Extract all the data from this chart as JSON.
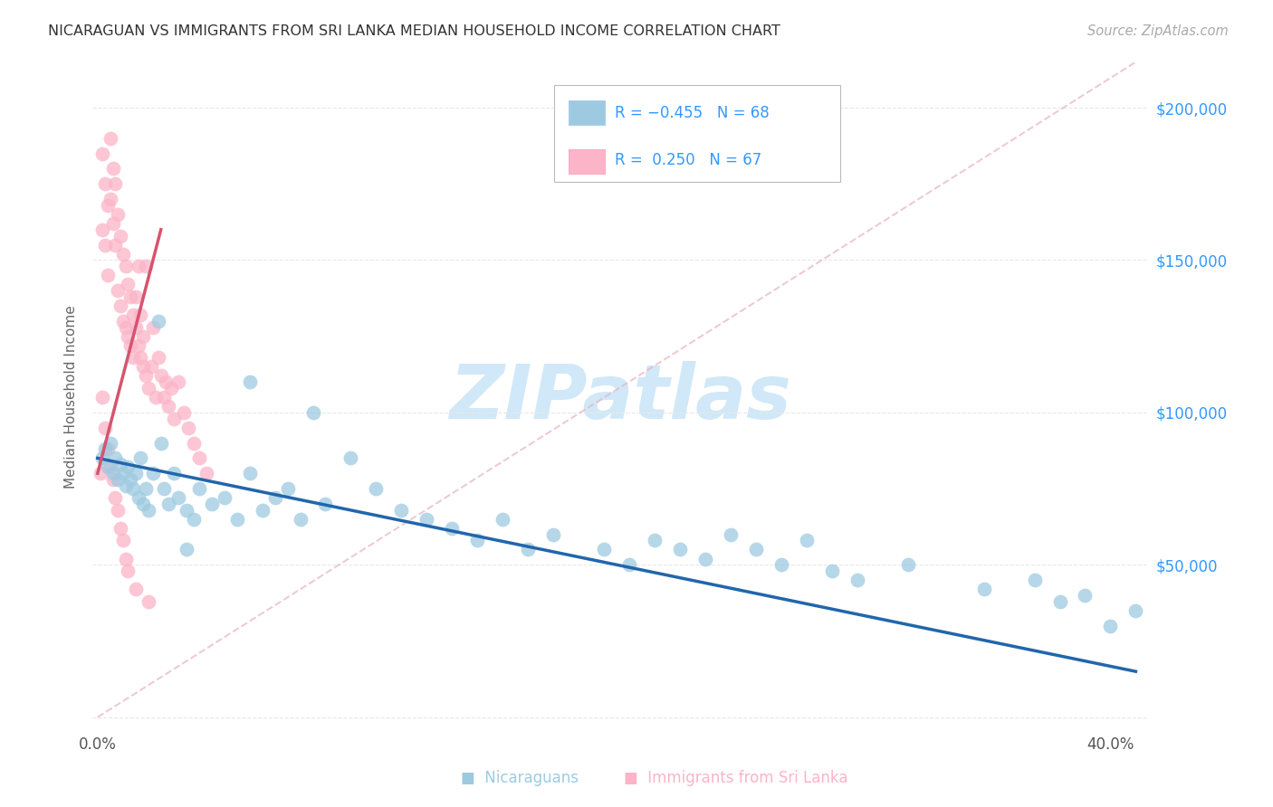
{
  "title": "NICARAGUAN VS IMMIGRANTS FROM SRI LANKA MEDIAN HOUSEHOLD INCOME CORRELATION CHART",
  "source": "Source: ZipAtlas.com",
  "ylabel": "Median Household Income",
  "xlim": [
    -0.002,
    0.415
  ],
  "ylim": [
    -5000,
    215000
  ],
  "legend_R1": "-0.455",
  "legend_N1": "68",
  "legend_R2": "0.250",
  "legend_N2": "67",
  "blue_color": "#9ecae1",
  "pink_color": "#fbb4c8",
  "blue_line_color": "#2166ac",
  "pink_line_color": "#d6546e",
  "ref_line_color": "#e8b4c0",
  "watermark_color": "#d0e8f8",
  "blue_scatter_x": [
    0.002,
    0.003,
    0.004,
    0.005,
    0.006,
    0.007,
    0.008,
    0.009,
    0.01,
    0.011,
    0.012,
    0.013,
    0.014,
    0.015,
    0.016,
    0.017,
    0.018,
    0.019,
    0.02,
    0.022,
    0.024,
    0.026,
    0.028,
    0.03,
    0.032,
    0.035,
    0.038,
    0.04,
    0.045,
    0.05,
    0.055,
    0.06,
    0.065,
    0.07,
    0.075,
    0.08,
    0.09,
    0.1,
    0.11,
    0.12,
    0.13,
    0.14,
    0.15,
    0.16,
    0.17,
    0.18,
    0.2,
    0.21,
    0.22,
    0.23,
    0.24,
    0.25,
    0.26,
    0.27,
    0.28,
    0.29,
    0.3,
    0.32,
    0.35,
    0.37,
    0.38,
    0.39,
    0.4,
    0.41,
    0.025,
    0.035,
    0.06,
    0.085
  ],
  "blue_scatter_y": [
    85000,
    88000,
    82000,
    90000,
    80000,
    85000,
    78000,
    83000,
    80000,
    76000,
    82000,
    78000,
    75000,
    80000,
    72000,
    85000,
    70000,
    75000,
    68000,
    80000,
    130000,
    75000,
    70000,
    80000,
    72000,
    68000,
    65000,
    75000,
    70000,
    72000,
    65000,
    80000,
    68000,
    72000,
    75000,
    65000,
    70000,
    85000,
    75000,
    68000,
    65000,
    62000,
    58000,
    65000,
    55000,
    60000,
    55000,
    50000,
    58000,
    55000,
    52000,
    60000,
    55000,
    50000,
    58000,
    48000,
    45000,
    50000,
    42000,
    45000,
    38000,
    40000,
    30000,
    35000,
    90000,
    55000,
    110000,
    100000
  ],
  "pink_scatter_x": [
    0.001,
    0.002,
    0.002,
    0.003,
    0.003,
    0.004,
    0.004,
    0.005,
    0.005,
    0.006,
    0.006,
    0.007,
    0.007,
    0.008,
    0.008,
    0.009,
    0.009,
    0.01,
    0.01,
    0.011,
    0.011,
    0.012,
    0.012,
    0.013,
    0.013,
    0.014,
    0.014,
    0.015,
    0.015,
    0.016,
    0.016,
    0.017,
    0.017,
    0.018,
    0.018,
    0.019,
    0.019,
    0.02,
    0.021,
    0.022,
    0.023,
    0.024,
    0.025,
    0.026,
    0.027,
    0.028,
    0.029,
    0.03,
    0.032,
    0.034,
    0.036,
    0.038,
    0.04,
    0.043,
    0.002,
    0.003,
    0.004,
    0.005,
    0.006,
    0.007,
    0.008,
    0.009,
    0.01,
    0.011,
    0.012,
    0.015,
    0.02
  ],
  "pink_scatter_y": [
    80000,
    185000,
    160000,
    175000,
    155000,
    168000,
    145000,
    190000,
    170000,
    180000,
    162000,
    175000,
    155000,
    165000,
    140000,
    158000,
    135000,
    152000,
    130000,
    148000,
    128000,
    142000,
    125000,
    138000,
    122000,
    132000,
    118000,
    128000,
    138000,
    122000,
    148000,
    118000,
    132000,
    115000,
    125000,
    148000,
    112000,
    108000,
    115000,
    128000,
    105000,
    118000,
    112000,
    105000,
    110000,
    102000,
    108000,
    98000,
    110000,
    100000,
    95000,
    90000,
    85000,
    80000,
    105000,
    95000,
    88000,
    82000,
    78000,
    72000,
    68000,
    62000,
    58000,
    52000,
    48000,
    42000,
    38000
  ],
  "blue_line_x0": 0.0,
  "blue_line_x1": 0.41,
  "blue_line_y0": 85000,
  "blue_line_y1": 15000,
  "pink_line_x0": 0.0,
  "pink_line_x1": 0.025,
  "pink_line_y0": 80000,
  "pink_line_y1": 160000,
  "ref_line_x0": 0.0,
  "ref_line_x1": 0.41,
  "ref_line_y0": 0,
  "ref_line_y1": 215000
}
